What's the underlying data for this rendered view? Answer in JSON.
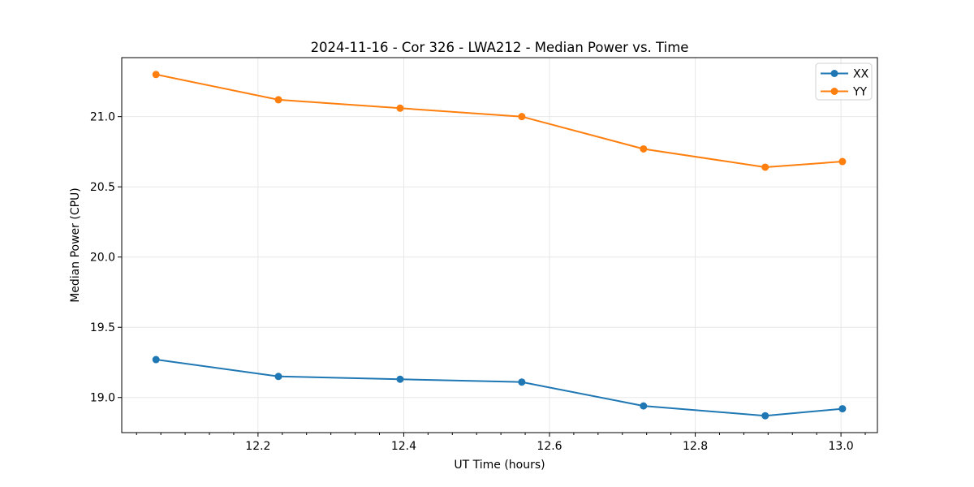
{
  "chart_data": {
    "type": "line",
    "title": "2024-11-16 - Cor 326 - LWA212 - Median Power vs. Time",
    "xlabel": "UT Time (hours)",
    "ylabel": "Median Power (CPU)",
    "x": [
      12.06,
      12.228,
      12.395,
      12.562,
      12.729,
      12.896,
      13.002
    ],
    "series": [
      {
        "name": "XX",
        "color": "#1f77b4",
        "values": [
          19.27,
          19.15,
          19.13,
          19.11,
          18.94,
          18.87,
          18.92
        ]
      },
      {
        "name": "YY",
        "color": "#ff7f0e",
        "values": [
          21.3,
          21.12,
          21.06,
          21.0,
          20.77,
          20.64,
          20.68
        ]
      }
    ],
    "xlim": [
      12.013,
      13.05
    ],
    "ylim": [
      18.75,
      21.42
    ],
    "xticks": [
      12.2,
      12.4,
      12.6,
      12.8,
      13.0
    ],
    "yticks": [
      19.0,
      19.5,
      20.0,
      20.5,
      21.0
    ],
    "x_minor_step": 0.0333333,
    "grid": true,
    "legend": {
      "position": "upper right",
      "entries": [
        "XX",
        "YY"
      ]
    },
    "marker": "circle"
  }
}
